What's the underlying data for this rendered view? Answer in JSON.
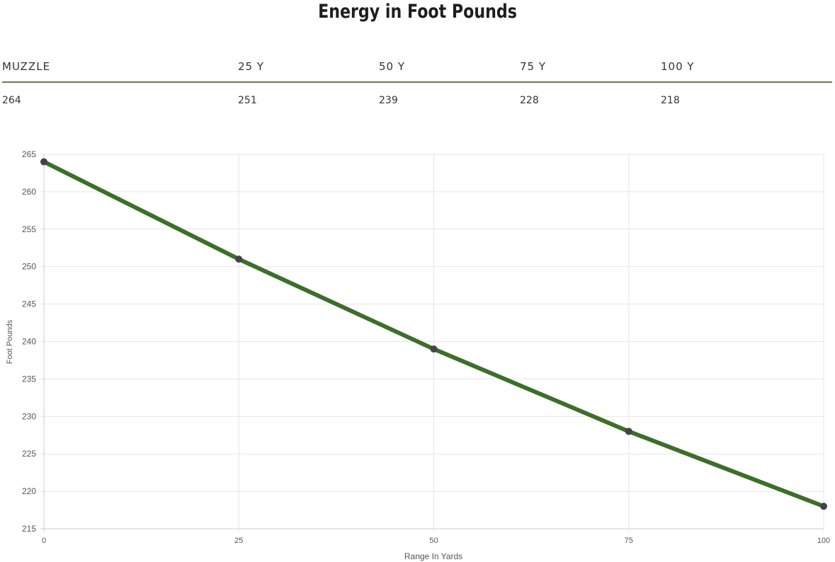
{
  "title": "Energy in Foot Pounds",
  "table": {
    "headers": [
      "MUZZLE",
      "25 Y",
      "50 Y",
      "75 Y",
      "100 Y"
    ],
    "values": [
      "264",
      "251",
      "239",
      "228",
      "218"
    ]
  },
  "chart_data": {
    "type": "line",
    "x": [
      0,
      25,
      50,
      75,
      100
    ],
    "series": [
      {
        "values": [
          264,
          251,
          239,
          228,
          218
        ]
      }
    ],
    "xlabel": "Range In Yards",
    "ylabel": "Foot Pounds",
    "xlim": [
      0,
      100
    ],
    "ylim": [
      215,
      265
    ],
    "xticks": [
      0,
      25,
      50,
      75,
      100
    ],
    "yticks": [
      215,
      220,
      225,
      230,
      235,
      240,
      245,
      250,
      255,
      260,
      265
    ],
    "grid": true,
    "line_color": "#3d6e2a",
    "marker_color": "#444444"
  }
}
